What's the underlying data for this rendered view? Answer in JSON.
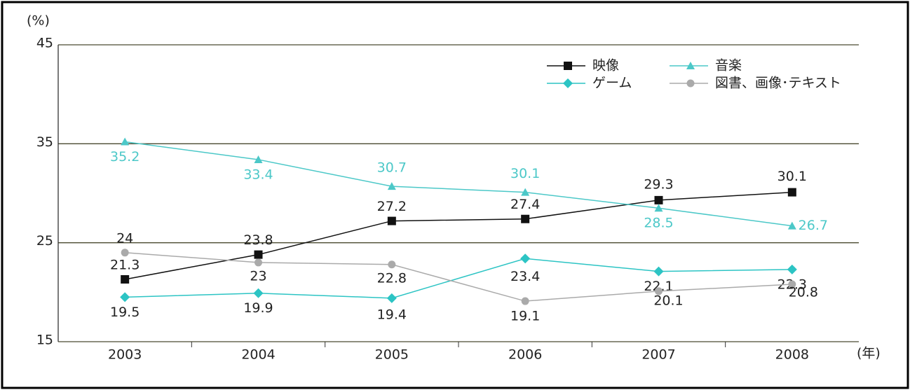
{
  "chart_data": {
    "type": "line",
    "y_unit": "(%)",
    "x_unit": "(年)",
    "categories": [
      "2003",
      "2004",
      "2005",
      "2006",
      "2007",
      "2008"
    ],
    "ylim": [
      15,
      45
    ],
    "yticks": [
      15,
      25,
      35,
      45
    ],
    "grid": true,
    "legend": "top-right",
    "series": [
      {
        "name": "映像",
        "color": "#111111",
        "marker": "square",
        "values": [
          21.3,
          23.8,
          27.2,
          27.4,
          29.3,
          30.1
        ]
      },
      {
        "name": "音楽",
        "color": "#4cc8c8",
        "marker": "triangle",
        "values": [
          35.2,
          33.4,
          30.7,
          30.1,
          28.5,
          26.7
        ]
      },
      {
        "name": "ゲーム",
        "color": "#2cc4c4",
        "marker": "diamond",
        "values": [
          19.5,
          19.9,
          19.4,
          23.4,
          22.1,
          22.3
        ]
      },
      {
        "name": "図書、画像･テキスト",
        "color": "#aaaaaa",
        "marker": "circle",
        "values": [
          24.0,
          23.0,
          22.8,
          19.1,
          20.1,
          20.8
        ]
      }
    ]
  }
}
